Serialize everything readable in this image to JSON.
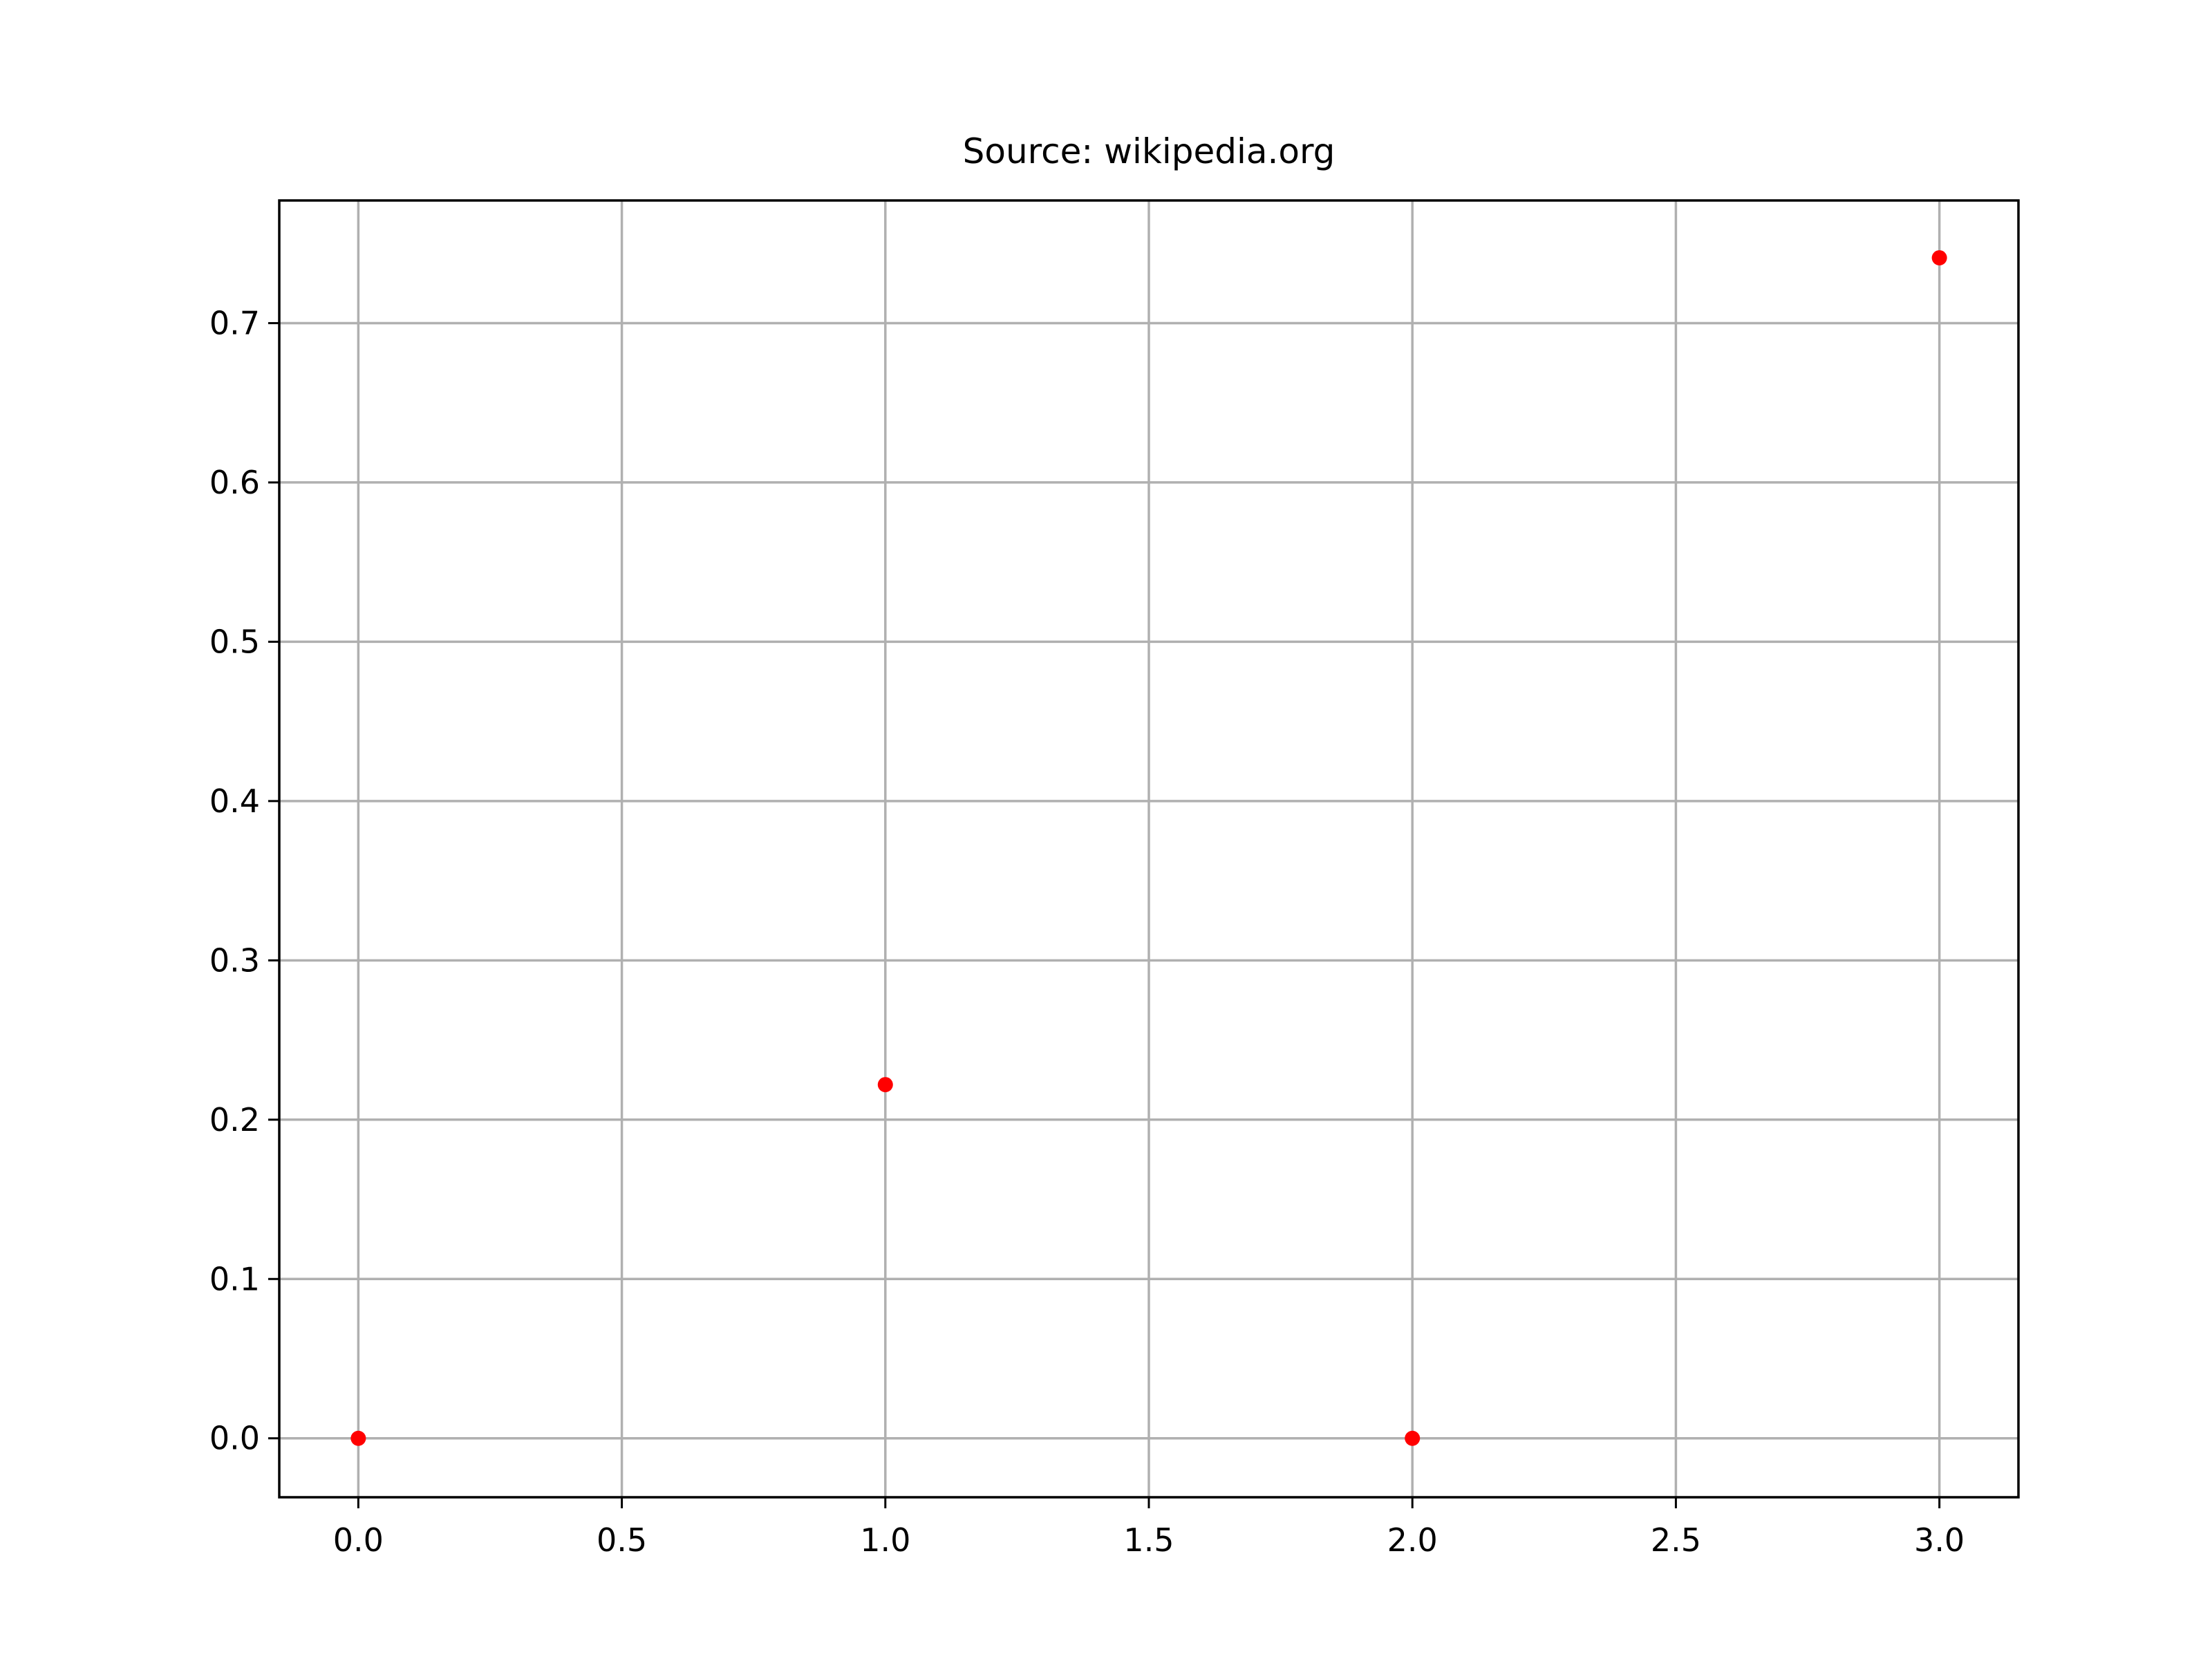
{
  "chart_data": {
    "type": "scatter",
    "title": "Source: wikipedia.org",
    "xlabel": "",
    "ylabel": "",
    "xlim": [
      -0.15,
      3.15
    ],
    "ylim": [
      -0.037,
      0.777
    ],
    "xticks": [
      0.0,
      0.5,
      1.0,
      1.5,
      2.0,
      2.5,
      3.0
    ],
    "xtick_labels": [
      "0.0",
      "0.5",
      "1.0",
      "1.5",
      "2.0",
      "2.5",
      "3.0"
    ],
    "yticks": [
      0.0,
      0.1,
      0.2,
      0.3,
      0.4,
      0.5,
      0.6,
      0.7
    ],
    "ytick_labels": [
      "0.0",
      "0.1",
      "0.2",
      "0.3",
      "0.4",
      "0.5",
      "0.6",
      "0.7"
    ],
    "grid": true,
    "legend": "none",
    "series": [
      {
        "color": "#ff0000",
        "marker": "circle",
        "x": [
          0,
          1,
          2,
          3
        ],
        "y": [
          0.0,
          0.222,
          0.0,
          0.741
        ]
      }
    ]
  }
}
